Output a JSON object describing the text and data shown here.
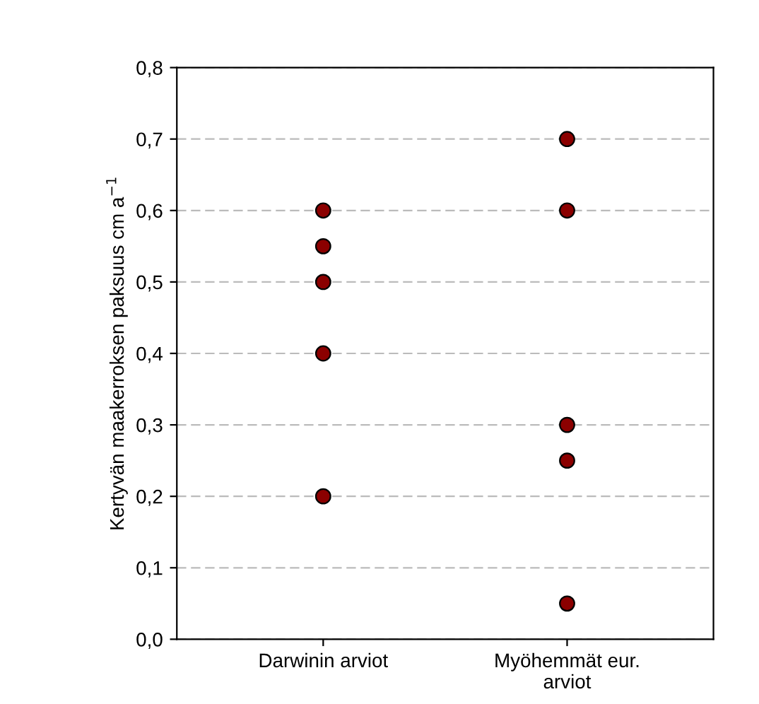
{
  "chart_data": {
    "type": "scatter",
    "ylabel": "Kertyvän maakerroksen paksuus cm a$^{−1}$",
    "categories": [
      "Darwinin arviot",
      "Myöhemmät eur.\narviot"
    ],
    "series": [
      {
        "color": "#8b0000",
        "x": [
          "Darwinin arviot",
          "Darwinin arviot",
          "Darwinin arviot",
          "Darwinin arviot",
          "Darwinin arviot"
        ],
        "values": [
          0.6,
          0.55,
          0.5,
          0.4,
          0.2
        ]
      },
      {
        "color": "#8b0000",
        "x": [
          "Myöhemmät eur.\narviot",
          "Myöhemmät eur.\narviot",
          "Myöhemmät eur.\narviot",
          "Myöhemmät eur.\narviot",
          "Myöhemmät eur.\narviot"
        ],
        "values": [
          0.7,
          0.6,
          0.3,
          0.25,
          0.05
        ]
      }
    ],
    "ylim": [
      0,
      0.8
    ],
    "yticks": [
      {
        "value": 0,
        "label": "0,0"
      },
      {
        "value": 0.1,
        "label": "0,1"
      },
      {
        "value": 0.2,
        "label": "0,2"
      },
      {
        "value": 0.3,
        "label": "0,3"
      },
      {
        "value": 0.4,
        "label": "0,4"
      },
      {
        "value": 0.5,
        "label": "0,5"
      },
      {
        "value": 0.6,
        "label": "0,6"
      },
      {
        "value": 0.7,
        "label": "0,7"
      },
      {
        "value": 0.8,
        "label": "0,8"
      }
    ],
    "grid": "y",
    "marker": "circle",
    "legend": false
  }
}
